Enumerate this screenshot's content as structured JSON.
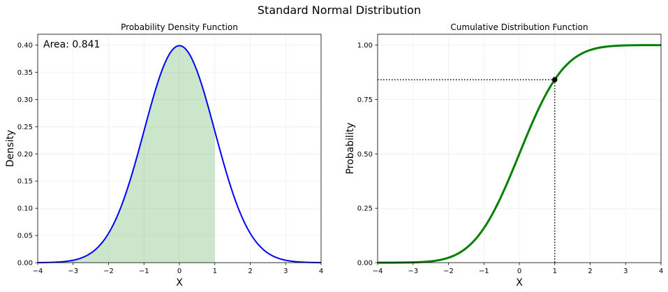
{
  "figure": {
    "suptitle": "Standard Normal Distribution"
  },
  "chart_data": [
    {
      "type": "line",
      "title": "Probability Density Function",
      "xlabel": "X",
      "ylabel": "Density",
      "xlim": [
        -4,
        4
      ],
      "ylim": [
        0,
        0.42
      ],
      "xticks": [
        -4,
        -3,
        -2,
        -1,
        0,
        1,
        2,
        3,
        4
      ],
      "xtick_labels": [
        "−4",
        "−3",
        "−2",
        "−1",
        "0",
        "1",
        "2",
        "3",
        "4"
      ],
      "yticks": [
        0,
        0.05,
        0.1,
        0.15,
        0.2,
        0.25,
        0.3,
        0.35,
        0.4
      ],
      "ytick_labels": [
        "0.00",
        "0.05",
        "0.10",
        "0.15",
        "0.20",
        "0.25",
        "0.30",
        "0.35",
        "0.40"
      ],
      "grid": true,
      "series": [
        {
          "function": "normal_pdf",
          "mean": 0,
          "std": 1,
          "x": [
            -4,
            -3.5,
            -3,
            -2.5,
            -2,
            -1.5,
            -1,
            -0.5,
            0,
            0.5,
            1,
            1.5,
            2,
            2.5,
            3,
            3.5,
            4
          ],
          "values": [
            0.0001,
            0.0009,
            0.0044,
            0.0175,
            0.054,
            0.1295,
            0.242,
            0.3521,
            0.3989,
            0.3521,
            0.242,
            0.1295,
            0.054,
            0.0175,
            0.0044,
            0.0009,
            0.0001
          ],
          "color": "#0000ff"
        }
      ],
      "shaded_region": {
        "from": -4,
        "to": 1,
        "color": "#008000",
        "alpha": 0.2
      },
      "annotation": {
        "text": "Area: 0.841",
        "position": "top-left"
      }
    },
    {
      "type": "line",
      "title": "Cumulative Distribution Function",
      "xlabel": "X",
      "ylabel": "Probability",
      "xlim": [
        -4,
        4
      ],
      "ylim": [
        0,
        1.05
      ],
      "xticks": [
        -4,
        -3,
        -2,
        -1,
        0,
        1,
        2,
        3,
        4
      ],
      "xtick_labels": [
        "−4",
        "−3",
        "−2",
        "−1",
        "0",
        "1",
        "2",
        "3",
        "4"
      ],
      "yticks": [
        0,
        0.25,
        0.5,
        0.75,
        1.0
      ],
      "ytick_labels": [
        "0.00",
        "0.25",
        "0.50",
        "0.75",
        "1.00"
      ],
      "grid": true,
      "series": [
        {
          "function": "normal_cdf",
          "mean": 0,
          "std": 1,
          "x": [
            -4,
            -3.5,
            -3,
            -2.5,
            -2,
            -1.5,
            -1,
            -0.5,
            0,
            0.5,
            1,
            1.5,
            2,
            2.5,
            3,
            3.5,
            4
          ],
          "values": [
            0.0,
            0.0002,
            0.0013,
            0.0062,
            0.0228,
            0.0668,
            0.1587,
            0.3085,
            0.5,
            0.6915,
            0.8413,
            0.9332,
            0.9772,
            0.9938,
            0.9987,
            0.9998,
            1.0
          ],
          "color": "#008000"
        }
      ],
      "marker": {
        "x": 1,
        "y": 0.841,
        "color": "#000000"
      },
      "reference_lines": {
        "style": "dotted",
        "color": "#000000"
      }
    }
  ]
}
